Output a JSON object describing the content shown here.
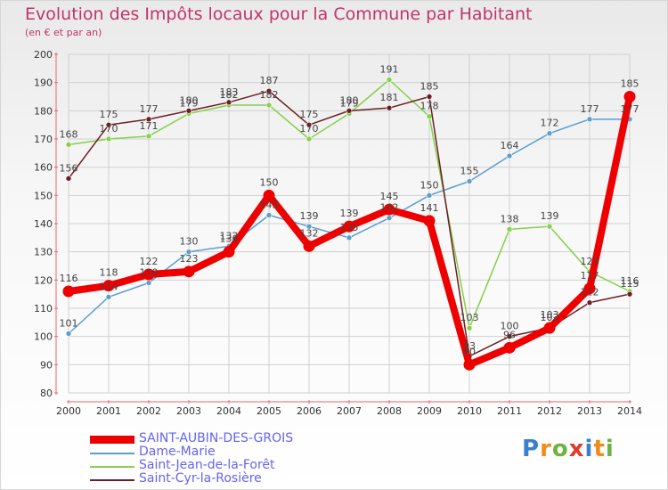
{
  "title": "Evolution des Impôts locaux pour la Commune par Habitant",
  "subtitle": "(en € et par an)",
  "logo": {
    "text": "Proxiti",
    "letters": [
      "P",
      "r",
      "o",
      "x",
      "i",
      "t",
      "i"
    ],
    "colors": [
      "#3a7fd0",
      "#f08a1c",
      "#6db33f",
      "#e03a2f",
      "#3a7fd0",
      "#f08a1c",
      "#6db33f"
    ]
  },
  "chart_data": {
    "type": "line",
    "x": [
      "2000",
      "2001",
      "2002",
      "2003",
      "2004",
      "2005",
      "2006",
      "2007",
      "2008",
      "2009",
      "2010",
      "2011",
      "2012",
      "2013",
      "2014"
    ],
    "ylim": [
      80,
      200
    ],
    "yticks": [
      80,
      90,
      100,
      110,
      120,
      130,
      140,
      150,
      160,
      170,
      180,
      190,
      200
    ],
    "grid": true,
    "legend_position": "bottom",
    "series": [
      {
        "name": "Dame-Marie",
        "color": "#5a9fd0",
        "values": [
          101,
          114,
          119,
          130,
          132,
          143,
          139,
          135,
          142,
          150,
          155,
          164,
          172,
          177,
          177
        ],
        "labels": [
          "101",
          "114",
          "119",
          "130",
          "132",
          "143",
          "139",
          "135",
          "142",
          "150",
          "155",
          "164",
          "172",
          "177",
          "177"
        ]
      },
      {
        "name": "Saint-Jean-de-la-Forêt",
        "color": "#86d04a",
        "values": [
          168,
          170,
          171,
          179,
          182,
          182,
          170,
          179,
          191,
          178,
          103,
          138,
          139,
          123,
          116
        ],
        "labels": [
          "168",
          "170",
          "171",
          "179",
          "182",
          "182",
          "170",
          "179",
          "191",
          "178",
          "103",
          "138",
          "139",
          "123",
          "116"
        ]
      },
      {
        "name": "Saint-Cyr-la-Rosière",
        "color": "#6b1f24",
        "values": [
          156,
          175,
          177,
          180,
          183,
          187,
          175,
          180,
          181,
          185,
          93,
          100,
          103,
          112,
          115
        ],
        "labels": [
          "156",
          "175",
          "177",
          "180",
          "183",
          "187",
          "175",
          "180",
          "181",
          "185",
          "93",
          "100",
          "103",
          "112",
          "115"
        ]
      },
      {
        "name": "SAINT-AUBIN-DES-GROIS",
        "color": "#ee0000",
        "values": [
          116,
          118,
          122,
          123,
          130,
          150,
          132,
          139,
          145,
          141,
          90,
          96,
          103,
          117,
          185
        ],
        "labels": [
          "116",
          "118",
          "122",
          "123",
          "130",
          "150",
          "132",
          "139",
          "145",
          "141",
          "90",
          "96",
          "103",
          "117",
          "185"
        ],
        "highlight": true
      }
    ]
  }
}
